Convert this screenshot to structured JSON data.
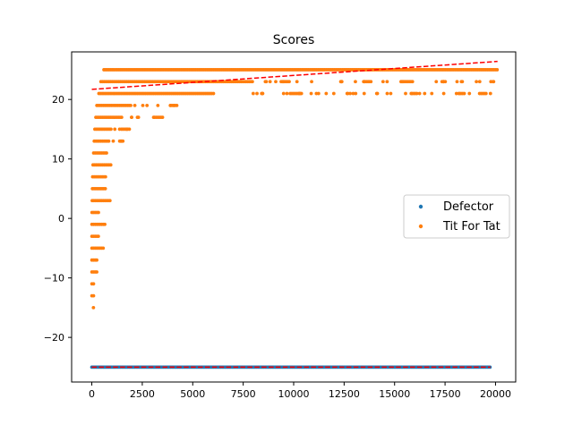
{
  "chart_data": {
    "type": "scatter",
    "title": "Scores",
    "xlabel": "",
    "ylabel": "",
    "xlim": [
      -1000,
      21000
    ],
    "ylim": [
      -27.5,
      28
    ],
    "x_ticks": [
      0,
      2500,
      5000,
      7500,
      10000,
      12500,
      15000,
      17500,
      20000
    ],
    "y_ticks": [
      -20,
      -10,
      0,
      10,
      20
    ],
    "x_tick_labels": [
      "0",
      "2500",
      "5000",
      "7500",
      "10000",
      "12500",
      "15000",
      "17500",
      "20000"
    ],
    "y_tick_labels": [
      "−20",
      "−10",
      "0",
      "10",
      "20"
    ],
    "grid": false,
    "legend_position": "center-right",
    "series": [
      {
        "name": "Defector",
        "color": "#1f77b4",
        "marker": "dot",
        "x_range": [
          0,
          19750
        ],
        "y": -25,
        "points_description": "constant score of -25 across all x"
      },
      {
        "name": "Tit For Tat",
        "color": "#ff7f0e",
        "marker": "dot",
        "bands": [
          {
            "y": 25,
            "x_start": 600,
            "x_end": 20100
          },
          {
            "y": 23,
            "x_start": 450,
            "x_end": 20100,
            "density": "sparse-after-8000"
          },
          {
            "y": 21,
            "x_start": 350,
            "x_end": 19800,
            "density": "sparse-after-6000"
          },
          {
            "y": 19,
            "x_start": 250,
            "x_end": 4500,
            "density": "sparse-after-2000"
          },
          {
            "y": 17,
            "x_start": 200,
            "x_end": 3800,
            "density": "sparse-after-1500"
          },
          {
            "y": 15,
            "x_start": 150,
            "x_end": 2400,
            "density": "sparse-after-1000"
          },
          {
            "y": 13,
            "x_start": 120,
            "x_end": 1600,
            "density": "sparse-after-900"
          },
          {
            "y": 11,
            "x_start": 90,
            "x_end": 800
          },
          {
            "y": 9,
            "x_start": 60,
            "x_end": 1000
          },
          {
            "y": 7,
            "x_start": 40,
            "x_end": 700
          },
          {
            "y": 5,
            "x_start": 30,
            "x_end": 700
          },
          {
            "y": 3,
            "x_start": 20,
            "x_end": 950
          },
          {
            "y": 1,
            "x_start": 10,
            "x_end": 400
          },
          {
            "y": -1,
            "x_start": 5,
            "x_end": 700
          },
          {
            "y": -3,
            "x_start": 5,
            "x_end": 350
          },
          {
            "y": -5,
            "x_start": 5,
            "x_end": 600
          },
          {
            "y": -7,
            "x_start": 5,
            "x_end": 300
          },
          {
            "y": -9,
            "x_start": 5,
            "x_end": 250
          },
          {
            "y": -11,
            "x_start": 5,
            "x_end": 150
          },
          {
            "y": -13,
            "x_start": 5,
            "x_end": 100
          },
          {
            "y": -15,
            "x_start": 80,
            "x_end": 120
          }
        ]
      }
    ],
    "trendlines": [
      {
        "series": "Tit For Tat",
        "color": "#ff0000",
        "style": "dashed",
        "x": [
          0,
          20100
        ],
        "y": [
          21.7,
          26.4
        ]
      },
      {
        "series": "Defector",
        "color": "#ff0000",
        "style": "dashed",
        "x": [
          0,
          19750
        ],
        "y": [
          -25,
          -25
        ]
      }
    ],
    "legend": [
      {
        "label": "Defector",
        "color": "#1f77b4"
      },
      {
        "label": "Tit For Tat",
        "color": "#ff7f0e"
      }
    ]
  }
}
